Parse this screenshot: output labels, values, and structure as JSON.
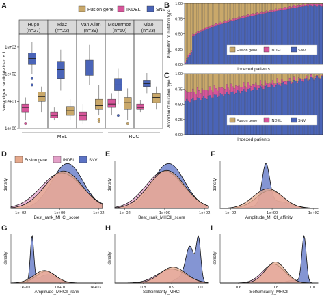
{
  "colors": {
    "fusion": "#c9a86a",
    "indel": "#d7559a",
    "snv": "#4a64b8",
    "fusion_kde": "#e6a98c",
    "indel_kde": "#e3a0c8",
    "snv_kde": "#5b72c4",
    "strip": "#d9d9d9"
  },
  "chart_data": [
    {
      "panel": "A",
      "type": "box",
      "legend": [
        "Fusion gene",
        "INDEL",
        "SNV"
      ],
      "ylabel": "Neoantigen candidate load + 1",
      "yscale": "log",
      "ylim": [
        1,
        3000
      ],
      "yticks": [
        "1e+00",
        "1e+01",
        "1e+02",
        "1e+03"
      ],
      "groups": [
        {
          "cohort": "Hugo",
          "n_label": "(n=27)"
        },
        {
          "cohort": "Riaz",
          "n_label": "(n=22)"
        },
        {
          "cohort": "Van Allen",
          "n_label": "(n=39)"
        },
        {
          "cohort": "McDermott",
          "n_label": "(n=50)"
        },
        {
          "cohort": "Miao",
          "n_label": "(n=33)"
        }
      ],
      "tumor_groups": [
        "MEL",
        "RCC"
      ],
      "series": [
        {
          "name": "SNV",
          "boxes": [
            {
              "min": 100,
              "q1": 230,
              "med": 380,
              "q3": 600,
              "max": 1500,
              "out": [
                40,
                70
              ]
            },
            {
              "min": 25,
              "q1": 70,
              "med": 150,
              "q3": 300,
              "max": 800,
              "out": []
            },
            {
              "min": 40,
              "q1": 90,
              "med": 170,
              "q3": 330,
              "max": 1200,
              "out": []
            },
            {
              "min": 8,
              "q1": 25,
              "med": 40,
              "q3": 70,
              "max": 160,
              "out": [
                3
              ]
            },
            {
              "min": 20,
              "q1": 35,
              "med": 45,
              "q3": 60,
              "max": 110,
              "out": []
            }
          ]
        },
        {
          "name": "INDEL",
          "boxes": [
            {
              "min": 2,
              "q1": 4,
              "med": 6,
              "q3": 8,
              "max": 14,
              "out": [
                1.5
              ]
            },
            {
              "min": 2,
              "q1": 2.5,
              "med": 3,
              "q3": 4,
              "max": 6,
              "out": []
            },
            {
              "min": 1.5,
              "q1": 2,
              "med": 3,
              "q3": 4,
              "max": 8,
              "out": []
            },
            {
              "min": 3,
              "q1": 6,
              "med": 8,
              "q3": 12,
              "max": 20,
              "out": []
            },
            {
              "min": 4,
              "q1": 5,
              "med": 6,
              "q3": 8,
              "max": 11,
              "out": []
            }
          ]
        },
        {
          "name": "Fusion gene",
          "boxes": [
            {
              "min": 4,
              "q1": 10,
              "med": 15,
              "q3": 22,
              "max": 35,
              "out": []
            },
            {
              "min": 2,
              "q1": 3,
              "med": 4.5,
              "q3": 6.5,
              "max": 12,
              "out": []
            },
            {
              "min": 3,
              "q1": 5,
              "med": 7,
              "q3": 12,
              "max": 40,
              "out": [
                1.8,
                2.2
              ]
            },
            {
              "min": 2,
              "q1": 5,
              "med": 9,
              "q3": 14,
              "max": 30,
              "out": [
                1.5
              ]
            },
            {
              "min": 5,
              "q1": 9,
              "med": 14,
              "q3": 20,
              "max": 35,
              "out": []
            }
          ]
        }
      ]
    },
    {
      "panel": "B",
      "type": "bar",
      "stacked": true,
      "ylabel": "Proportion of mutation type",
      "xlabel": "Indexed patients",
      "yticks": [
        "0.00",
        "0.25",
        "0.50",
        "0.75",
        "1.00"
      ],
      "ylim": [
        0,
        1
      ],
      "legend": [
        "Fusion gene",
        "INDEL",
        "SNV"
      ]
    },
    {
      "panel": "C",
      "type": "bar",
      "stacked": true,
      "ylabel": "Proportion of mutation type",
      "xlabel": "Indexed patients",
      "yticks": [
        "0.00",
        "0.25",
        "0.50",
        "0.75",
        "1.00"
      ],
      "ylim": [
        0,
        1
      ],
      "legend": [
        "Fusion gene",
        "INDEL",
        "SNV"
      ]
    },
    {
      "panel": "D",
      "type": "area",
      "xlabel": "Best_rank_MHCI_score",
      "ylabel": "density",
      "xticks": [
        "1e−02",
        "1e+00",
        "1e+02"
      ],
      "xlog": [
        -2.5,
        2.2
      ],
      "legend": [
        "Fusion gene",
        "INDEL",
        "SNV"
      ],
      "series": [
        {
          "name": "Fusion gene",
          "peaks": [
            [
              0.2,
              0.95,
              1.0
            ]
          ]
        },
        {
          "name": "INDEL",
          "peaks": [
            [
              0.1,
              1.05,
              0.95
            ]
          ]
        },
        {
          "name": "SNV",
          "peaks": [
            [
              0.4,
              0.8,
              1.2
            ]
          ]
        }
      ]
    },
    {
      "panel": "E",
      "type": "area",
      "xlabel": "Best_rank_MHCII_score",
      "ylabel": "density",
      "xticks": [
        "1e−02",
        "1e+00",
        "1e+02"
      ],
      "xlog": [
        -2.5,
        2.2
      ],
      "series": [
        {
          "name": "Fusion gene",
          "peaks": [
            [
              0.1,
              0.9,
              1.0
            ]
          ]
        },
        {
          "name": "INDEL",
          "peaks": [
            [
              0.0,
              0.95,
              0.98
            ]
          ]
        },
        {
          "name": "SNV",
          "peaks": [
            [
              0.2,
              0.8,
              1.18
            ]
          ]
        }
      ]
    },
    {
      "panel": "F",
      "type": "area",
      "xlabel": "Amplitude_MHCI_affinity",
      "ylabel": "density",
      "xticks": [
        "1e−02",
        "1e+00",
        "1e+02"
      ],
      "xlog": [
        -2.5,
        2.2
      ],
      "series": [
        {
          "name": "Fusion gene",
          "peaks": [
            [
              -0.2,
              0.7,
              0.55
            ]
          ]
        },
        {
          "name": "INDEL",
          "peaks": [
            [
              -0.1,
              0.65,
              0.5
            ]
          ]
        },
        {
          "name": "SNV",
          "peaks": [
            [
              -0.3,
              0.18,
              1.1
            ],
            [
              0.2,
              0.7,
              0.2
            ]
          ]
        }
      ]
    },
    {
      "panel": "G",
      "type": "area",
      "xlabel": "Amplitude_MHCII_rank",
      "ylabel": "density",
      "xticks": [
        "1e−01",
        "1e+01",
        "1e+03"
      ],
      "xlog": [
        -1.8,
        3.4
      ],
      "series": [
        {
          "name": "Fusion gene",
          "peaks": [
            [
              0.1,
              0.6,
              0.3
            ]
          ]
        },
        {
          "name": "INDEL",
          "peaks": [
            [
              0.2,
              0.55,
              0.28
            ]
          ]
        },
        {
          "name": "SNV",
          "peaks": [
            [
              -0.6,
              0.1,
              1.1
            ],
            [
              0.3,
              0.5,
              0.2
            ]
          ]
        }
      ]
    },
    {
      "panel": "H",
      "type": "area",
      "xlabel": "Selfsimilarity_MHCI",
      "ylabel": "density",
      "xticks": [
        "0.8",
        "0.9",
        "1.0"
      ],
      "xlim": [
        0.7,
        1.03
      ],
      "series": [
        {
          "name": "Fusion gene",
          "peaks": [
            [
              0.905,
              0.045,
              0.4
            ]
          ]
        },
        {
          "name": "INDEL",
          "peaks": [
            [
              0.9,
              0.05,
              0.35
            ]
          ]
        },
        {
          "name": "SNV",
          "peaks": [
            [
              0.965,
              0.015,
              0.9
            ],
            [
              0.995,
              0.008,
              1.05
            ],
            [
              0.93,
              0.02,
              0.12
            ]
          ]
        }
      ]
    },
    {
      "panel": "I",
      "type": "area",
      "xlabel": "Selfsimilarity_MHCII",
      "ylabel": "density",
      "xticks": [
        "0.6",
        "0.8",
        "1.0"
      ],
      "xlim": [
        0.5,
        1.03
      ],
      "series": [
        {
          "name": "Fusion gene",
          "peaks": [
            [
              0.8,
              0.055,
              0.5
            ]
          ]
        },
        {
          "name": "INDEL",
          "peaks": [
            [
              0.79,
              0.06,
              0.45
            ]
          ]
        },
        {
          "name": "SNV",
          "peaks": [
            [
              0.955,
              0.012,
              1.1
            ],
            [
              0.9,
              0.04,
              0.06
            ]
          ]
        }
      ]
    }
  ]
}
